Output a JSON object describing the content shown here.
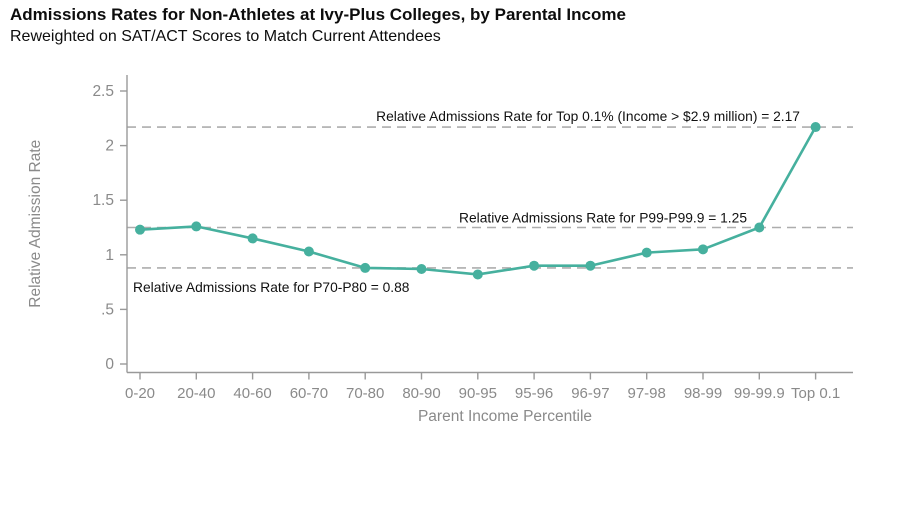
{
  "header": {
    "title": "Admissions Rates for Non-Athletes at Ivy-Plus Colleges, by Parental Income",
    "subtitle": "Reweighted on SAT/ACT Scores to Match Current Attendees"
  },
  "chart_data": {
    "type": "line",
    "title": "Admissions Rates for Non-Athletes at Ivy-Plus Colleges, by Parental Income",
    "subtitle": "Reweighted on SAT/ACT Scores to Match Current Attendees",
    "categories": [
      "0-20",
      "20-40",
      "40-60",
      "60-70",
      "70-80",
      "80-90",
      "90-95",
      "95-96",
      "96-97",
      "97-98",
      "98-99",
      "99-99.9",
      "Top 0.1"
    ],
    "values": [
      1.23,
      1.26,
      1.15,
      1.03,
      0.88,
      0.87,
      0.82,
      0.9,
      0.9,
      1.02,
      1.05,
      1.25,
      2.17
    ],
    "xlabel": "Parent Income Percentile",
    "ylabel": "Relative Admission Rate",
    "ylim": [
      0,
      2.5
    ],
    "yticks": [
      0,
      0.5,
      1,
      1.5,
      2,
      2.5
    ],
    "ytick_labels": [
      "0",
      ".5",
      "1",
      "1.5",
      "2",
      "2.5"
    ],
    "grid": false,
    "legend": "none",
    "reference_lines": [
      {
        "value": 2.17,
        "label": "Relative Admissions Rate for Top 0.1% (Income > $2.9 million) = 2.17",
        "label_position": "above-line, right-aligned"
      },
      {
        "value": 1.25,
        "label": "Relative Admissions Rate for P99-P99.9 = 1.25",
        "label_position": "above-line, right-aligned"
      },
      {
        "value": 0.88,
        "label": "Relative Admissions Rate for P70-P80 = 0.88",
        "label_position": "below-line, left-aligned"
      }
    ],
    "colors": {
      "line": "#46b09e",
      "marker": "#46b09e",
      "axis": "#999999",
      "tick_text": "#8a8a8a",
      "axis_title_text": "#8a8a8a",
      "dashed_line": "#adadad",
      "annotation_text": "#111111",
      "background": "#ffffff"
    }
  }
}
